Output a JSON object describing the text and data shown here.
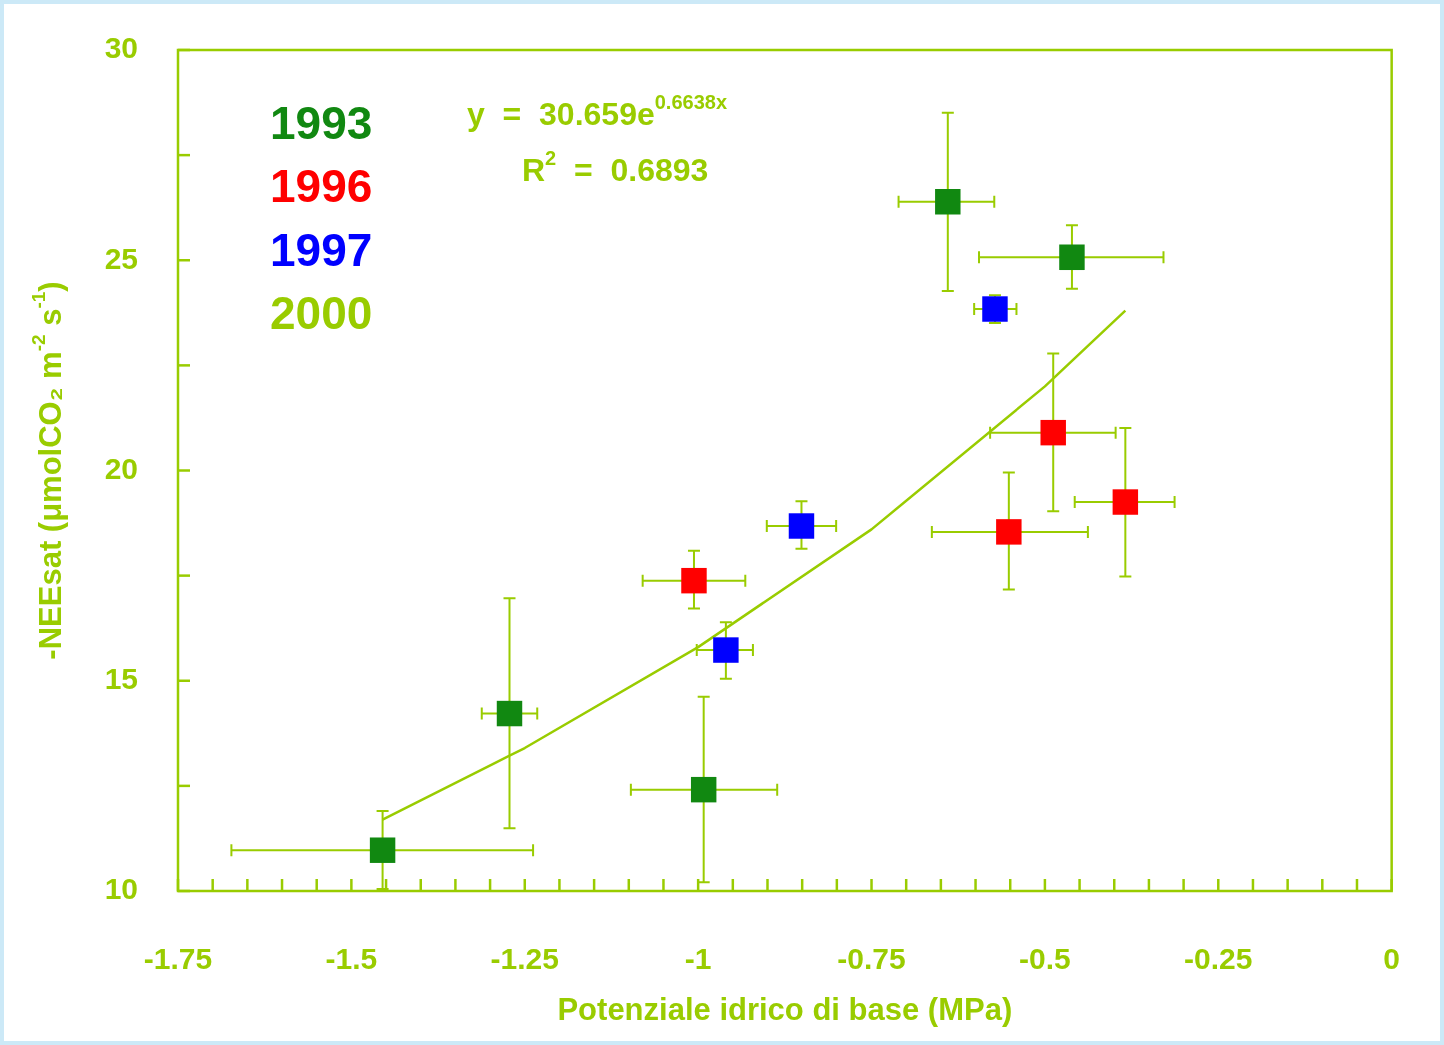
{
  "chart_data": {
    "type": "scatter",
    "xlabel": "Potenziale idrico di base (MPa)",
    "ylabel": "-NEEsat (μmolCO₂ m$^{-2}$ s$^{-1}$)",
    "annotations": [
      "y  =  30.659e$^{0.6638x}$",
      "R$^{2}$  =  0.6893"
    ],
    "xlim": [
      -1.75,
      0
    ],
    "ylim": [
      10,
      30
    ],
    "xticks": [
      -1.75,
      {
        "value": -1.7,
        "label": null
      },
      {
        "value": -1.65,
        "label": null
      },
      {
        "value": -1.6,
        "label": null
      },
      {
        "value": -1.55,
        "label": null
      },
      -1.5,
      {
        "value": -1.45,
        "label": null
      },
      {
        "value": -1.4,
        "label": null
      },
      {
        "value": -1.35,
        "label": null
      },
      {
        "value": -1.3,
        "label": null
      },
      -1.25,
      {
        "value": -1.2,
        "label": null
      },
      {
        "value": -1.15,
        "label": null
      },
      {
        "value": -1.1,
        "label": null
      },
      {
        "value": -1.05,
        "label": null
      },
      -1,
      {
        "value": -0.95,
        "label": null
      },
      {
        "value": -0.9,
        "label": null
      },
      {
        "value": -0.85,
        "label": null
      },
      {
        "value": -0.8,
        "label": null
      },
      -0.75,
      {
        "value": -0.7,
        "label": null
      },
      {
        "value": -0.65,
        "label": null
      },
      {
        "value": -0.6,
        "label": null
      },
      {
        "value": -0.55,
        "label": null
      },
      -0.5,
      {
        "value": -0.45,
        "label": null
      },
      {
        "value": -0.4,
        "label": null
      },
      {
        "value": -0.35,
        "label": null
      },
      {
        "value": -0.3,
        "label": null
      },
      -0.25,
      {
        "value": -0.2,
        "label": null
      },
      {
        "value": -0.15,
        "label": null
      },
      {
        "value": -0.1,
        "label": null
      },
      {
        "value": -0.05,
        "label": null
      },
      0
    ],
    "yticks": [
      10,
      {
        "value": 12.5,
        "label": null
      },
      15,
      {
        "value": 17.5,
        "label": null
      },
      20,
      {
        "value": 22.5,
        "label": null
      },
      25,
      {
        "value": 27.5,
        "label": null
      },
      30
    ],
    "grid": false,
    "legend": "top left",
    "marker": "square",
    "series": [
      {
        "name": "1993",
        "color": "#118811",
        "x": [
          -1.455,
          -1.272,
          -0.992,
          -0.64,
          -0.461
        ],
        "values": [
          10.97,
          14.22,
          12.41,
          26.39,
          25.07
        ],
        "xerrors": [
          [
            -1.673,
            -1.238
          ],
          [
            -1.312,
            -1.232
          ],
          [
            -1.097,
            -0.886
          ],
          [
            -0.711,
            -0.573
          ],
          [
            -0.595,
            -0.329
          ]
        ],
        "errors": [
          [
            10.05,
            11.9
          ],
          [
            11.49,
            16.96
          ],
          [
            10.21,
            14.62
          ],
          [
            24.27,
            28.51
          ],
          [
            24.32,
            25.83
          ]
        ]
      },
      {
        "name": "1996",
        "color": "#ff0000",
        "x": [
          -1.006,
          -0.552,
          -0.488,
          -0.384
        ],
        "values": [
          17.38,
          18.54,
          20.9,
          19.25
        ],
        "xerrors": [
          [
            -1.08,
            -0.932
          ],
          [
            -0.663,
            -0.438
          ],
          [
            -0.579,
            -0.398
          ],
          [
            -0.457,
            -0.313
          ]
        ],
        "errors": [
          [
            16.72,
            18.09
          ],
          [
            17.17,
            19.95
          ],
          [
            19.03,
            22.78
          ],
          [
            17.48,
            21.01
          ]
        ]
      },
      {
        "name": "1997",
        "color": "#0000ff",
        "x": [
          -0.96,
          -0.851,
          -0.572
        ],
        "values": [
          15.73,
          18.68,
          23.84
        ],
        "xerrors": [
          [
            -1.002,
            -0.921
          ],
          [
            -0.901,
            -0.801
          ],
          [
            -0.602,
            -0.541
          ]
        ],
        "errors": [
          [
            15.05,
            16.39
          ],
          [
            18.14,
            19.27
          ],
          [
            23.51,
            24.17
          ]
        ]
      },
      {
        "name": "2000",
        "color": "#99cc00"
      },
      {
        "type": "line",
        "marker": "none",
        "color": "#99cc00",
        "x": [
          -1.455,
          -1.25,
          -1.0,
          -0.75,
          -0.5,
          -0.384
        ],
        "values": [
          11.7,
          13.4,
          15.8,
          18.6,
          22.0,
          23.8
        ]
      }
    ]
  }
}
